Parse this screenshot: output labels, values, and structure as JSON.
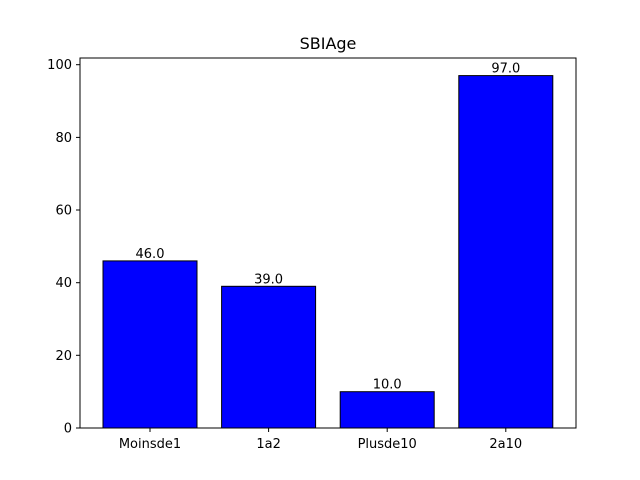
{
  "chart_data": {
    "type": "bar",
    "title": "SBIAge",
    "xlabel": "",
    "ylabel": "",
    "categories": [
      "Moinsde1",
      "1a2",
      "Plusde10",
      "2a10"
    ],
    "values": [
      46.0,
      39.0,
      10.0,
      97.0
    ],
    "value_labels": [
      "46.0",
      "39.0",
      "10.0",
      "97.0"
    ],
    "ylim": [
      0,
      101.85
    ],
    "yticks": [
      0,
      20,
      40,
      60,
      80,
      100
    ],
    "ytick_labels": [
      "0",
      "20",
      "40",
      "60",
      "80",
      "100"
    ],
    "grid": false,
    "legend": "none",
    "colors": {
      "bar_fill": "#0000ff",
      "bar_edge": "#000000",
      "axes": "#000000",
      "background": "#ffffff"
    }
  }
}
